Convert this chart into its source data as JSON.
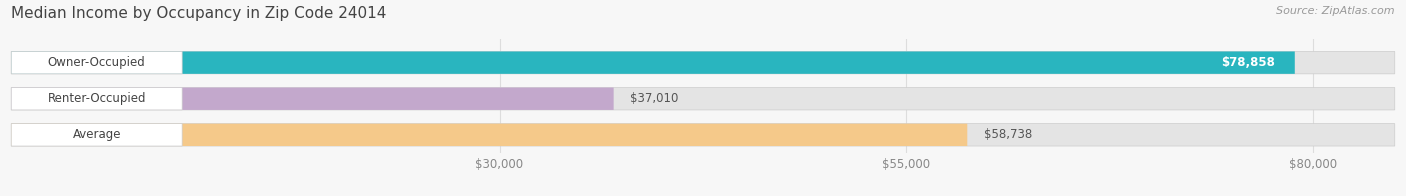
{
  "title": "Median Income by Occupancy in Zip Code 24014",
  "source": "Source: ZipAtlas.com",
  "categories": [
    "Owner-Occupied",
    "Renter-Occupied",
    "Average"
  ],
  "values": [
    78858,
    37010,
    58738
  ],
  "bar_colors": [
    "#29b5bf",
    "#c3a8cc",
    "#f5c98a"
  ],
  "value_labels": [
    "$78,858",
    "$37,010",
    "$58,738"
  ],
  "label_inside": [
    true,
    false,
    false
  ],
  "xlim_max": 85000,
  "xticks": [
    30000,
    55000,
    80000
  ],
  "xtick_labels": [
    "$30,000",
    "$55,000",
    "$80,000"
  ],
  "background_color": "#f7f7f7",
  "bar_bg_color": "#e4e4e4",
  "title_fontsize": 11,
  "source_fontsize": 8,
  "bar_height": 0.62,
  "label_bg_color": "#ffffff"
}
